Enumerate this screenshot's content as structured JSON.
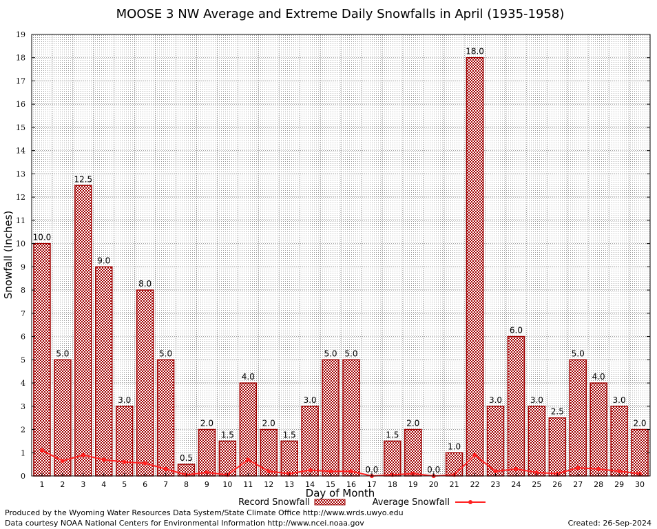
{
  "chart_data": {
    "type": "bar",
    "title": "MOOSE 3 NW Average and Extreme Daily Snowfalls in April (1935-1958)",
    "xlabel": "Day of Month",
    "ylabel": "Snowfall (Inches)",
    "ylim": [
      0,
      19
    ],
    "yticks": [
      0,
      1,
      2,
      3,
      4,
      5,
      6,
      7,
      8,
      9,
      10,
      11,
      12,
      13,
      14,
      15,
      16,
      17,
      18,
      19
    ],
    "grid": true,
    "legend_position": "bottom",
    "categories": [
      "1",
      "2",
      "3",
      "4",
      "5",
      "6",
      "7",
      "8",
      "9",
      "10",
      "11",
      "12",
      "13",
      "14",
      "15",
      "16",
      "17",
      "18",
      "19",
      "20",
      "21",
      "22",
      "23",
      "24",
      "25",
      "26",
      "27",
      "28",
      "29",
      "30"
    ],
    "series": [
      {
        "name": "Record Snowfall",
        "type": "bar",
        "color": "#a00000",
        "values": [
          10.0,
          5.0,
          12.5,
          9.0,
          3.0,
          8.0,
          5.0,
          0.5,
          2.0,
          1.5,
          4.0,
          2.0,
          1.5,
          3.0,
          5.0,
          5.0,
          0.0,
          1.5,
          2.0,
          0.0,
          1.0,
          18.0,
          3.0,
          6.0,
          3.0,
          2.5,
          5.0,
          4.0,
          3.0,
          2.0
        ],
        "labels": [
          "10.0",
          "5.0",
          "12.5",
          "9.0",
          "3.0",
          "8.0",
          "5.0",
          "0.5",
          "2.0",
          "1.5",
          "4.0",
          "2.0",
          "1.5",
          "3.0",
          "5.0",
          "5.0",
          "0.0",
          "1.5",
          "2.0",
          "0.0",
          "1.0",
          "18.0",
          "3.0",
          "6.0",
          "3.0",
          "2.5",
          "5.0",
          "4.0",
          "3.0",
          "2.0"
        ]
      },
      {
        "name": "Average Snowfall",
        "type": "line",
        "color": "#ff2020",
        "values": [
          1.1,
          0.65,
          0.9,
          0.7,
          0.6,
          0.55,
          0.3,
          0.05,
          0.15,
          0.05,
          0.7,
          0.2,
          0.1,
          0.25,
          0.2,
          0.2,
          0.0,
          0.05,
          0.1,
          0.0,
          0.05,
          0.9,
          0.2,
          0.3,
          0.15,
          0.1,
          0.35,
          0.3,
          0.2,
          0.1
        ]
      }
    ]
  },
  "footer": {
    "left_line1": "Produced by the Wyoming Water Resources Data System/State Climate Office http://www.wrds.uwyo.edu",
    "left_line2": "Data courtesy NOAA National Centers for Environmental Information http://www.ncei.noaa.gov",
    "created": "Created:  26-Sep-2024"
  }
}
